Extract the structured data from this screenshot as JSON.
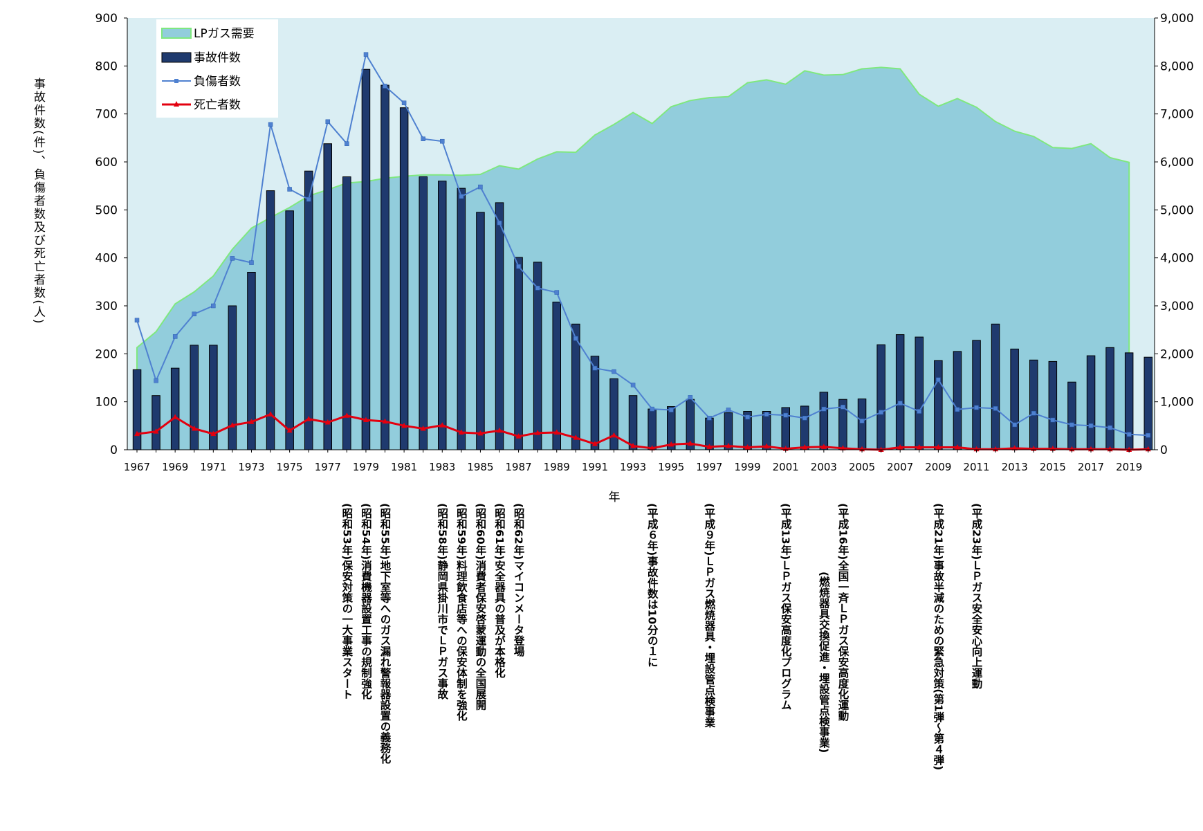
{
  "chart_data": {
    "type": "bar",
    "xlabel": "年",
    "ylabel_left": "事故件数(件)、負傷者数及び死亡者数(人)",
    "ylim_left": [
      0,
      900
    ],
    "ylim_right": [
      0,
      9000
    ],
    "yticks_left": [
      "0",
      "100",
      "200",
      "300",
      "400",
      "500",
      "600",
      "700",
      "800",
      "900"
    ],
    "yticks_right": [
      "0",
      "1,000",
      "2,000",
      "3,000",
      "4,000",
      "5,000",
      "6,000",
      "7,000",
      "8,000",
      "9,000"
    ],
    "legend_position": "top-left",
    "x": [
      1967,
      1968,
      1969,
      1970,
      1971,
      1972,
      1973,
      1974,
      1975,
      1976,
      1977,
      1978,
      1979,
      1980,
      1981,
      1982,
      1983,
      1984,
      1985,
      1986,
      1987,
      1988,
      1989,
      1990,
      1991,
      1992,
      1993,
      1994,
      1995,
      1996,
      1997,
      1998,
      1999,
      2000,
      2001,
      2002,
      2003,
      2004,
      2005,
      2006,
      2007,
      2008,
      2009,
      2010,
      2011,
      2012,
      2013,
      2014,
      2015,
      2016,
      2017,
      2018,
      2019,
      2020
    ],
    "x_tick_labels": [
      "1967",
      "1969",
      "1971",
      "1973",
      "1975",
      "1977",
      "1979",
      "1981",
      "1983",
      "1985",
      "1987",
      "1989",
      "1991",
      "1993",
      "1995",
      "1997",
      "1999",
      "2001",
      "2003",
      "2005",
      "2007",
      "2009",
      "2011",
      "2013",
      "2015",
      "2017",
      "2019"
    ],
    "series": [
      {
        "name": "LPガス需要",
        "type": "area",
        "axis": "right",
        "color": "#92cddc",
        "edge_color": "#7fe87f",
        "values": [
          2130,
          2460,
          3040,
          3290,
          3620,
          4180,
          4620,
          4840,
          5050,
          5290,
          5420,
          5560,
          5590,
          5660,
          5700,
          5730,
          5730,
          5720,
          5740,
          5920,
          5850,
          6060,
          6210,
          6200,
          6560,
          6780,
          7030,
          6800,
          7150,
          7280,
          7340,
          7360,
          7650,
          7710,
          7620,
          7900,
          7810,
          7820,
          7940,
          7970,
          7940,
          7410,
          7160,
          7320,
          7140,
          6840,
          6640,
          6530,
          6300,
          6280,
          6380,
          6090,
          5990,
          null
        ]
      },
      {
        "name": "事故件数",
        "type": "bar",
        "axis": "left",
        "color": "#1f3a6e",
        "values": [
          167,
          113,
          170,
          218,
          218,
          300,
          370,
          540,
          498,
          581,
          638,
          569,
          793,
          760,
          713,
          569,
          560,
          545,
          495,
          515,
          401,
          391,
          308,
          262,
          195,
          148,
          113,
          85,
          90,
          105,
          66,
          77,
          80,
          80,
          88,
          91,
          120,
          105,
          106,
          219,
          240,
          235,
          186,
          205,
          228,
          262,
          210,
          187,
          184,
          141,
          196,
          213,
          202,
          193
        ]
      },
      {
        "name": "負傷者数",
        "type": "line",
        "axis": "left",
        "color": "#4f81d0",
        "marker": "square",
        "values": [
          270,
          144,
          236,
          283,
          300,
          399,
          390,
          678,
          543,
          522,
          684,
          638,
          824,
          758,
          723,
          648,
          643,
          528,
          548,
          473,
          382,
          337,
          328,
          232,
          170,
          163,
          135,
          85,
          83,
          109,
          66,
          83,
          68,
          74,
          72,
          66,
          85,
          89,
          60,
          78,
          97,
          80,
          146,
          84,
          88,
          86,
          52,
          76,
          62,
          52,
          50,
          46,
          32,
          30
        ]
      },
      {
        "name": "死亡者数",
        "type": "line",
        "axis": "left",
        "color": "#e3000f",
        "marker": "triangle",
        "values": [
          33,
          38,
          68,
          44,
          33,
          51,
          58,
          74,
          40,
          64,
          57,
          71,
          62,
          59,
          50,
          44,
          51,
          36,
          34,
          40,
          28,
          35,
          36,
          25,
          12,
          30,
          8,
          3,
          11,
          13,
          6,
          8,
          5,
          7,
          2,
          5,
          6,
          3,
          1,
          0,
          5,
          5,
          5,
          5,
          1,
          1,
          3,
          2,
          2,
          1,
          1,
          1,
          0,
          1
        ]
      }
    ],
    "annotations": [
      {
        "year": 1978,
        "text": "(昭和53年)保安対策の一大事業スタート"
      },
      {
        "year": 1979,
        "text": "(昭和54年)消費機器設置工事の規制強化"
      },
      {
        "year": 1980,
        "text": "(昭和55年)地下室等へのガス漏れ警報器設置の義務化"
      },
      {
        "year": 1983,
        "text": "(昭和58年)静岡県掛川市でＬＰガス事故"
      },
      {
        "year": 1984,
        "text": "(昭和59年)料理飲食店等への保安体制を強化"
      },
      {
        "year": 1985,
        "text": "(昭和60年)消費者保安啓蒙運動の全国展開"
      },
      {
        "year": 1986,
        "text": "(昭和61年)安全器具の普及が本格化"
      },
      {
        "year": 1987,
        "text": "(昭和62年)マイコンメータ登場"
      },
      {
        "year": 1994,
        "text": "(平成６年)事故件数は10分の１に"
      },
      {
        "year": 1997,
        "text": "(平成９年)ＬＰガス燃焼器具・埋設管点検事業"
      },
      {
        "year": 2001,
        "text": "(平成13年)ＬＰガス保安高度化プログラム"
      },
      {
        "year": 2003,
        "text": "(燃焼器具交換促進・埋設管点検事業)"
      },
      {
        "year": 2004,
        "text": "(平成16年)全国一斉ＬＰガス保安高度化運動"
      },
      {
        "year": 2009,
        "text": "(平成21年)事故半減のための緊急対策(第1弾～第４弾)"
      },
      {
        "year": 2011,
        "text": "(平成23年)ＬＰガス安全安心向上運動"
      }
    ]
  }
}
